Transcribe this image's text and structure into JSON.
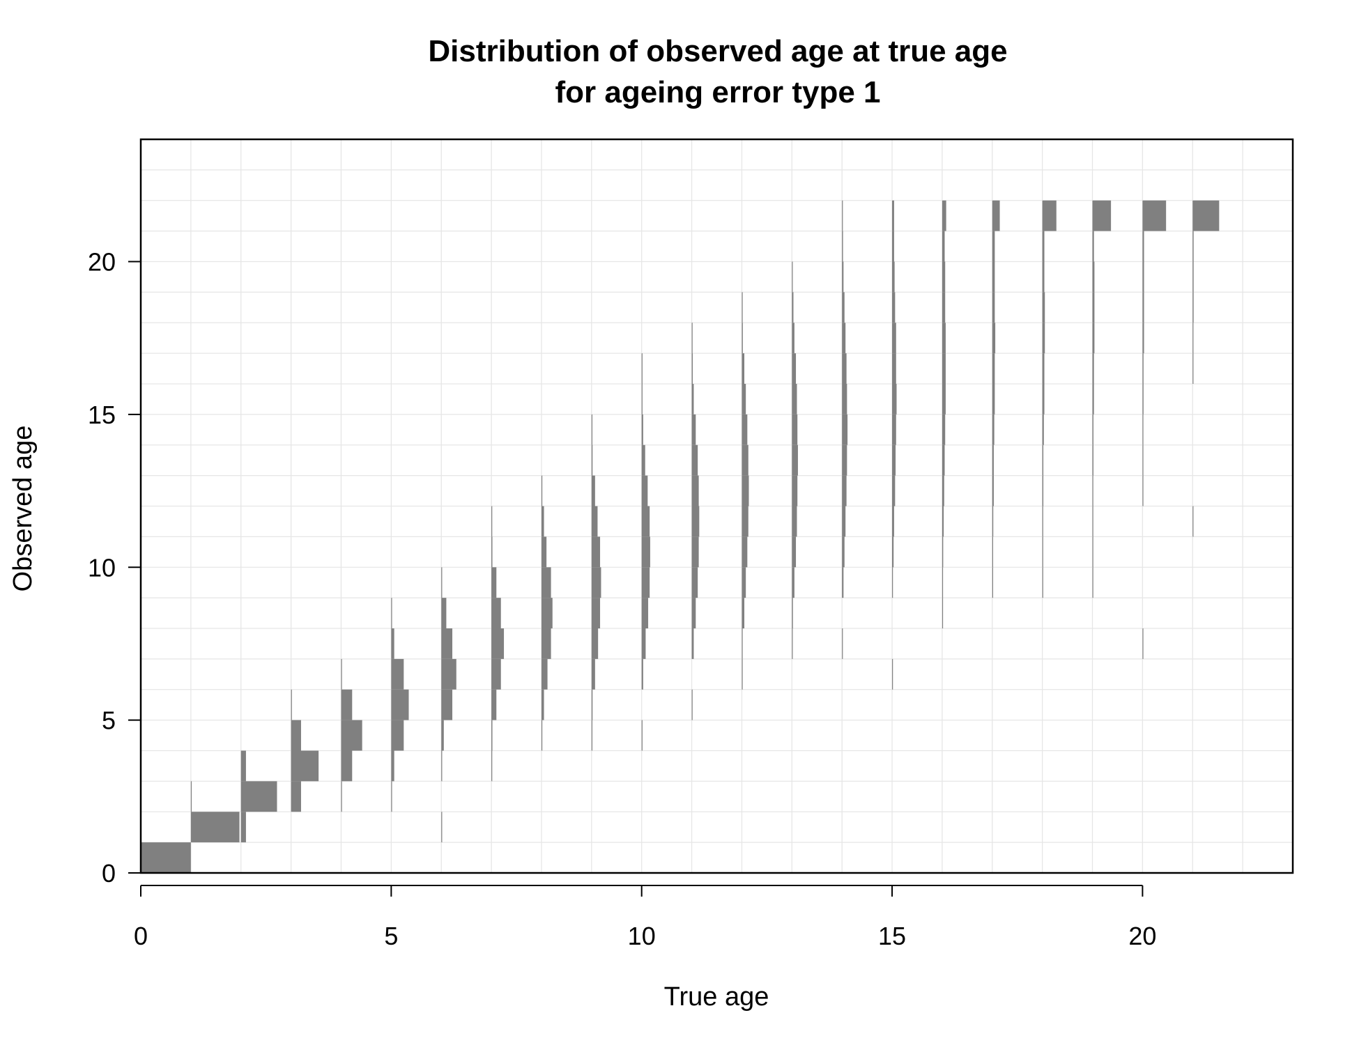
{
  "chart_data": {
    "type": "bar",
    "title_line1": "Distribution of observed age at true age",
    "title_line2": "for ageing error type 1",
    "xlabel": "True age",
    "ylabel": "Observed age",
    "xlim": [
      0,
      23
    ],
    "ylim": [
      0,
      24
    ],
    "xticks": [
      0,
      5,
      10,
      15,
      20
    ],
    "yticks": [
      0,
      5,
      10,
      15,
      20
    ],
    "bar_color": "#808080",
    "grid_color": "#e6e6e6",
    "bar_max_width_true_age": 1.0,
    "distributions": [
      {
        "true_age": 0,
        "probs": [
          [
            0,
            1.0
          ]
        ]
      },
      {
        "true_age": 1,
        "probs": [
          [
            1,
            0.97
          ],
          [
            2,
            0.01
          ]
        ]
      },
      {
        "true_age": 2,
        "probs": [
          [
            1,
            0.1
          ],
          [
            2,
            0.72
          ],
          [
            3,
            0.1
          ]
        ]
      },
      {
        "true_age": 3,
        "probs": [
          [
            2,
            0.2
          ],
          [
            3,
            0.55
          ],
          [
            4,
            0.2
          ],
          [
            5,
            0.01
          ]
        ]
      },
      {
        "true_age": 4,
        "probs": [
          [
            2,
            0.01
          ],
          [
            3,
            0.22
          ],
          [
            4,
            0.42
          ],
          [
            5,
            0.22
          ],
          [
            6,
            0.01
          ]
        ]
      },
      {
        "true_age": 5,
        "probs": [
          [
            2,
            0.01
          ],
          [
            3,
            0.06
          ],
          [
            4,
            0.25
          ],
          [
            5,
            0.35
          ],
          [
            6,
            0.25
          ],
          [
            7,
            0.06
          ],
          [
            8,
            0.01
          ]
        ]
      },
      {
        "true_age": 6,
        "probs": [
          [
            1,
            0.005
          ],
          [
            3,
            0.01
          ],
          [
            4,
            0.05
          ],
          [
            5,
            0.22
          ],
          [
            6,
            0.3
          ],
          [
            7,
            0.22
          ],
          [
            8,
            0.1
          ],
          [
            9,
            0.005
          ]
        ]
      },
      {
        "true_age": 7,
        "probs": [
          [
            3,
            0.005
          ],
          [
            4,
            0.02
          ],
          [
            5,
            0.1
          ],
          [
            6,
            0.19
          ],
          [
            7,
            0.25
          ],
          [
            8,
            0.19
          ],
          [
            9,
            0.1
          ],
          [
            10,
            0.02
          ],
          [
            11,
            0.005
          ]
        ]
      },
      {
        "true_age": 8,
        "probs": [
          [
            4,
            0.005
          ],
          [
            5,
            0.05
          ],
          [
            6,
            0.12
          ],
          [
            7,
            0.19
          ],
          [
            8,
            0.22
          ],
          [
            9,
            0.19
          ],
          [
            10,
            0.1
          ],
          [
            11,
            0.05
          ],
          [
            12,
            0.005
          ]
        ]
      },
      {
        "true_age": 9,
        "probs": [
          [
            4,
            0.005
          ],
          [
            5,
            0.02
          ],
          [
            6,
            0.07
          ],
          [
            7,
            0.13
          ],
          [
            8,
            0.17
          ],
          [
            9,
            0.19
          ],
          [
            10,
            0.17
          ],
          [
            11,
            0.12
          ],
          [
            12,
            0.07
          ],
          [
            13,
            0.02
          ],
          [
            14,
            0.005
          ]
        ]
      },
      {
        "true_age": 10,
        "probs": [
          [
            4,
            0.005
          ],
          [
            6,
            0.03
          ],
          [
            7,
            0.08
          ],
          [
            8,
            0.13
          ],
          [
            9,
            0.16
          ],
          [
            10,
            0.17
          ],
          [
            11,
            0.16
          ],
          [
            12,
            0.12
          ],
          [
            13,
            0.07
          ],
          [
            14,
            0.03
          ],
          [
            15,
            0.01
          ],
          [
            16,
            0.005
          ]
        ]
      },
      {
        "true_age": 11,
        "probs": [
          [
            5,
            0.005
          ],
          [
            7,
            0.04
          ],
          [
            8,
            0.08
          ],
          [
            9,
            0.12
          ],
          [
            10,
            0.14
          ],
          [
            11,
            0.15
          ],
          [
            12,
            0.14
          ],
          [
            13,
            0.12
          ],
          [
            14,
            0.08
          ],
          [
            15,
            0.04
          ],
          [
            16,
            0.02
          ],
          [
            17,
            0.005
          ]
        ]
      },
      {
        "true_age": 12,
        "probs": [
          [
            6,
            0.005
          ],
          [
            7,
            0.01
          ],
          [
            8,
            0.05
          ],
          [
            9,
            0.08
          ],
          [
            10,
            0.11
          ],
          [
            11,
            0.13
          ],
          [
            12,
            0.14
          ],
          [
            13,
            0.13
          ],
          [
            14,
            0.11
          ],
          [
            15,
            0.08
          ],
          [
            16,
            0.05
          ],
          [
            17,
            0.02
          ],
          [
            18,
            0.005
          ]
        ]
      },
      {
        "true_age": 13,
        "probs": [
          [
            7,
            0.005
          ],
          [
            8,
            0.02
          ],
          [
            9,
            0.05
          ],
          [
            10,
            0.08
          ],
          [
            11,
            0.1
          ],
          [
            12,
            0.11
          ],
          [
            13,
            0.12
          ],
          [
            14,
            0.11
          ],
          [
            15,
            0.1
          ],
          [
            16,
            0.08
          ],
          [
            17,
            0.05
          ],
          [
            18,
            0.03
          ],
          [
            19,
            0.01
          ]
        ]
      },
      {
        "true_age": 14,
        "probs": [
          [
            7,
            0.005
          ],
          [
            9,
            0.03
          ],
          [
            10,
            0.05
          ],
          [
            11,
            0.07
          ],
          [
            12,
            0.09
          ],
          [
            13,
            0.1
          ],
          [
            14,
            0.11
          ],
          [
            15,
            0.1
          ],
          [
            16,
            0.09
          ],
          [
            17,
            0.07
          ],
          [
            18,
            0.05
          ],
          [
            19,
            0.03
          ],
          [
            20,
            0.02
          ],
          [
            21,
            0.005
          ]
        ]
      },
      {
        "true_age": 15,
        "probs": [
          [
            6,
            0.005
          ],
          [
            9,
            0.01
          ],
          [
            10,
            0.03
          ],
          [
            11,
            0.04
          ],
          [
            12,
            0.06
          ],
          [
            13,
            0.07
          ],
          [
            14,
            0.08
          ],
          [
            15,
            0.09
          ],
          [
            16,
            0.08
          ],
          [
            17,
            0.08
          ],
          [
            18,
            0.06
          ],
          [
            19,
            0.05
          ],
          [
            20,
            0.04
          ],
          [
            21,
            0.04
          ]
        ]
      },
      {
        "true_age": 16,
        "probs": [
          [
            8,
            0.005
          ],
          [
            9,
            0.01
          ],
          [
            10,
            0.02
          ],
          [
            11,
            0.03
          ],
          [
            12,
            0.04
          ],
          [
            13,
            0.05
          ],
          [
            14,
            0.06
          ],
          [
            15,
            0.07
          ],
          [
            16,
            0.07
          ],
          [
            17,
            0.07
          ],
          [
            18,
            0.06
          ],
          [
            19,
            0.06
          ],
          [
            20,
            0.05
          ],
          [
            21,
            0.08
          ]
        ]
      },
      {
        "true_age": 17,
        "probs": [
          [
            9,
            0.01
          ],
          [
            10,
            0.01
          ],
          [
            11,
            0.02
          ],
          [
            12,
            0.03
          ],
          [
            13,
            0.03
          ],
          [
            14,
            0.04
          ],
          [
            15,
            0.05
          ],
          [
            16,
            0.05
          ],
          [
            17,
            0.06
          ],
          [
            18,
            0.05
          ],
          [
            19,
            0.05
          ],
          [
            20,
            0.05
          ],
          [
            21,
            0.15
          ]
        ]
      },
      {
        "true_age": 18,
        "probs": [
          [
            9,
            0.005
          ],
          [
            10,
            0.01
          ],
          [
            11,
            0.01
          ],
          [
            12,
            0.02
          ],
          [
            13,
            0.02
          ],
          [
            14,
            0.03
          ],
          [
            15,
            0.04
          ],
          [
            16,
            0.04
          ],
          [
            17,
            0.05
          ],
          [
            18,
            0.05
          ],
          [
            19,
            0.04
          ],
          [
            20,
            0.04
          ],
          [
            21,
            0.28
          ]
        ]
      },
      {
        "true_age": 19,
        "probs": [
          [
            9,
            0.005
          ],
          [
            10,
            0.005
          ],
          [
            11,
            0.01
          ],
          [
            12,
            0.01
          ],
          [
            13,
            0.02
          ],
          [
            14,
            0.02
          ],
          [
            15,
            0.03
          ],
          [
            16,
            0.03
          ],
          [
            17,
            0.04
          ],
          [
            18,
            0.04
          ],
          [
            19,
            0.04
          ],
          [
            20,
            0.03
          ],
          [
            21,
            0.37
          ]
        ]
      },
      {
        "true_age": 20,
        "probs": [
          [
            7,
            0.005
          ],
          [
            12,
            0.005
          ],
          [
            13,
            0.01
          ],
          [
            14,
            0.01
          ],
          [
            15,
            0.02
          ],
          [
            16,
            0.02
          ],
          [
            17,
            0.03
          ],
          [
            18,
            0.03
          ],
          [
            19,
            0.03
          ],
          [
            20,
            0.03
          ],
          [
            21,
            0.47
          ]
        ]
      },
      {
        "true_age": 21,
        "probs": [
          [
            11,
            0.005
          ],
          [
            16,
            0.01
          ],
          [
            17,
            0.01
          ],
          [
            18,
            0.02
          ],
          [
            19,
            0.02
          ],
          [
            20,
            0.02
          ],
          [
            21,
            0.53
          ]
        ]
      }
    ]
  }
}
